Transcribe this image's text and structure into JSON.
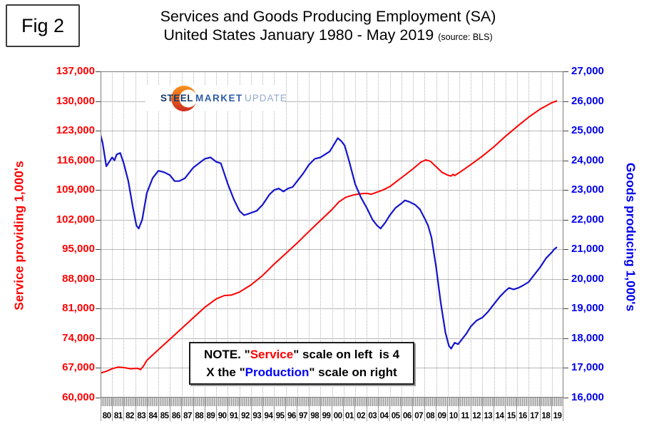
{
  "figure_label": "Fig 2",
  "title": {
    "line1": "Services and Goods Producing Employment (SA)",
    "line2": "United States January 1980 - May 2019",
    "source": "(source: BLS)"
  },
  "logo": {
    "steel": "STEEL",
    "market": "MARKET",
    "update": "UPDATE",
    "crescent_top_color": "#f7941d",
    "crescent_bottom_color": "#cf2b1e"
  },
  "note": {
    "line1": [
      {
        "text": "NOTE. \"",
        "color": "#000000"
      },
      {
        "text": "Service",
        "color": "#ff0000"
      },
      {
        "text": "\" scale on left  is 4",
        "color": "#000000"
      }
    ],
    "line2": [
      {
        "text": "X the \"",
        "color": "#000000"
      },
      {
        "text": "Production",
        "color": "#0000ff"
      },
      {
        "text": "\" scale on right",
        "color": "#000000"
      }
    ]
  },
  "chart_data": {
    "type": "line",
    "grid": true,
    "x_axis": {
      "start": 1980,
      "end": 2020,
      "years": [
        "80",
        "81",
        "82",
        "83",
        "84",
        "85",
        "86",
        "87",
        "88",
        "89",
        "90",
        "91",
        "92",
        "93",
        "94",
        "95",
        "96",
        "97",
        "98",
        "99",
        "00",
        "01",
        "02",
        "03",
        "04",
        "05",
        "06",
        "07",
        "08",
        "09",
        "10",
        "11",
        "12",
        "13",
        "14",
        "15",
        "16",
        "17",
        "18",
        "19"
      ]
    },
    "left_axis": {
      "label": "Service providing 1,000's",
      "color": "#ff0000",
      "min": 60000,
      "max": 137000,
      "ticks": [
        "137,000",
        "130,000",
        "123,000",
        "116,000",
        "109,000",
        "102,000",
        "95,000",
        "88,000",
        "81,000",
        "74,000",
        "67,000",
        "60,000"
      ]
    },
    "right_axis": {
      "label": "Goods producing 1,000's",
      "color": "#0000ee",
      "min": 16000,
      "max": 27000,
      "ticks": [
        "27,000",
        "26,000",
        "25,000",
        "24,000",
        "23,000",
        "22,000",
        "21,000",
        "20,000",
        "19,000",
        "18,000",
        "17,000",
        "16,000"
      ]
    },
    "series": [
      {
        "name": "Service providing employment",
        "axis": "left",
        "color": "#ff0000",
        "width": 2,
        "points": [
          [
            1980.0,
            65800
          ],
          [
            1980.5,
            66200
          ],
          [
            1981.0,
            66800
          ],
          [
            1981.5,
            67200
          ],
          [
            1982.0,
            67100
          ],
          [
            1982.6,
            66800
          ],
          [
            1983.2,
            66900
          ],
          [
            1983.45,
            66600
          ],
          [
            1983.7,
            67400
          ],
          [
            1984.0,
            68800
          ],
          [
            1985.0,
            71300
          ],
          [
            1986.0,
            73800
          ],
          [
            1987.0,
            76300
          ],
          [
            1988.0,
            78800
          ],
          [
            1989.0,
            81300
          ],
          [
            1990.0,
            83300
          ],
          [
            1990.7,
            84100
          ],
          [
            1991.3,
            84200
          ],
          [
            1992.0,
            84900
          ],
          [
            1993.0,
            86600
          ],
          [
            1994.0,
            88800
          ],
          [
            1995.0,
            91500
          ],
          [
            1996.0,
            94000
          ],
          [
            1997.0,
            96500
          ],
          [
            1998.0,
            99200
          ],
          [
            1999.0,
            101800
          ],
          [
            2000.0,
            104400
          ],
          [
            2000.6,
            106200
          ],
          [
            2001.2,
            107300
          ],
          [
            2001.8,
            107800
          ],
          [
            2002.4,
            108100
          ],
          [
            2003.0,
            108200
          ],
          [
            2003.4,
            108000
          ],
          [
            2003.8,
            108400
          ],
          [
            2004.4,
            109000
          ],
          [
            2005.0,
            109800
          ],
          [
            2006.0,
            111900
          ],
          [
            2007.0,
            114000
          ],
          [
            2007.7,
            115600
          ],
          [
            2008.1,
            116100
          ],
          [
            2008.5,
            115800
          ],
          [
            2009.0,
            114500
          ],
          [
            2009.5,
            113200
          ],
          [
            2010.0,
            112500
          ],
          [
            2010.3,
            112300
          ],
          [
            2010.45,
            112700
          ],
          [
            2010.6,
            112400
          ],
          [
            2011.0,
            113100
          ],
          [
            2012.0,
            115000
          ],
          [
            2013.0,
            117000
          ],
          [
            2014.0,
            119200
          ],
          [
            2015.0,
            121700
          ],
          [
            2016.0,
            124000
          ],
          [
            2017.0,
            126200
          ],
          [
            2018.0,
            128100
          ],
          [
            2019.0,
            129600
          ],
          [
            2019.4,
            130000
          ]
        ]
      },
      {
        "name": "Goods producing employment",
        "axis": "right",
        "color": "#1414cc",
        "width": 2.2,
        "points": [
          [
            1980.0,
            24850
          ],
          [
            1980.17,
            24600
          ],
          [
            1980.5,
            23800
          ],
          [
            1980.75,
            23950
          ],
          [
            1981.0,
            24100
          ],
          [
            1981.2,
            24000
          ],
          [
            1981.4,
            24200
          ],
          [
            1981.7,
            24250
          ],
          [
            1982.0,
            23900
          ],
          [
            1982.4,
            23300
          ],
          [
            1982.8,
            22400
          ],
          [
            1983.1,
            21800
          ],
          [
            1983.3,
            21700
          ],
          [
            1983.6,
            22000
          ],
          [
            1984.0,
            22900
          ],
          [
            1984.5,
            23400
          ],
          [
            1985.0,
            23650
          ],
          [
            1985.5,
            23600
          ],
          [
            1986.0,
            23500
          ],
          [
            1986.4,
            23300
          ],
          [
            1986.8,
            23300
          ],
          [
            1987.3,
            23400
          ],
          [
            1988.0,
            23750
          ],
          [
            1988.5,
            23900
          ],
          [
            1989.0,
            24050
          ],
          [
            1989.5,
            24100
          ],
          [
            1990.0,
            23950
          ],
          [
            1990.4,
            23900
          ],
          [
            1991.0,
            23200
          ],
          [
            1991.5,
            22700
          ],
          [
            1992.0,
            22300
          ],
          [
            1992.4,
            22150
          ],
          [
            1992.8,
            22200
          ],
          [
            1993.5,
            22300
          ],
          [
            1994.0,
            22500
          ],
          [
            1994.6,
            22850
          ],
          [
            1995.0,
            23000
          ],
          [
            1995.4,
            23050
          ],
          [
            1995.8,
            22950
          ],
          [
            1996.2,
            23050
          ],
          [
            1996.6,
            23100
          ],
          [
            1997.0,
            23300
          ],
          [
            1997.5,
            23550
          ],
          [
            1998.0,
            23850
          ],
          [
            1998.5,
            24050
          ],
          [
            1999.0,
            24100
          ],
          [
            1999.4,
            24200
          ],
          [
            1999.8,
            24300
          ],
          [
            2000.2,
            24550
          ],
          [
            2000.5,
            24750
          ],
          [
            2000.8,
            24650
          ],
          [
            2001.1,
            24500
          ],
          [
            2001.5,
            23950
          ],
          [
            2002.0,
            23200
          ],
          [
            2002.5,
            22750
          ],
          [
            2003.0,
            22400
          ],
          [
            2003.5,
            22000
          ],
          [
            2003.9,
            21800
          ],
          [
            2004.2,
            21700
          ],
          [
            2004.6,
            21900
          ],
          [
            2005.0,
            22150
          ],
          [
            2005.5,
            22400
          ],
          [
            2006.0,
            22550
          ],
          [
            2006.3,
            22650
          ],
          [
            2006.7,
            22600
          ],
          [
            2007.2,
            22500
          ],
          [
            2007.6,
            22350
          ],
          [
            2008.0,
            22050
          ],
          [
            2008.3,
            21800
          ],
          [
            2008.6,
            21400
          ],
          [
            2009.0,
            20400
          ],
          [
            2009.4,
            19200
          ],
          [
            2009.8,
            18200
          ],
          [
            2010.1,
            17750
          ],
          [
            2010.3,
            17650
          ],
          [
            2010.6,
            17850
          ],
          [
            2010.9,
            17800
          ],
          [
            2011.2,
            17950
          ],
          [
            2011.6,
            18150
          ],
          [
            2012.0,
            18400
          ],
          [
            2012.5,
            18600
          ],
          [
            2013.0,
            18700
          ],
          [
            2013.5,
            18900
          ],
          [
            2014.0,
            19150
          ],
          [
            2014.5,
            19400
          ],
          [
            2015.0,
            19600
          ],
          [
            2015.3,
            19700
          ],
          [
            2015.7,
            19650
          ],
          [
            2016.1,
            19700
          ],
          [
            2016.5,
            19780
          ],
          [
            2017.0,
            19900
          ],
          [
            2017.5,
            20150
          ],
          [
            2018.0,
            20400
          ],
          [
            2018.5,
            20700
          ],
          [
            2019.0,
            20900
          ],
          [
            2019.2,
            21000
          ],
          [
            2019.4,
            21060
          ]
        ]
      }
    ]
  }
}
